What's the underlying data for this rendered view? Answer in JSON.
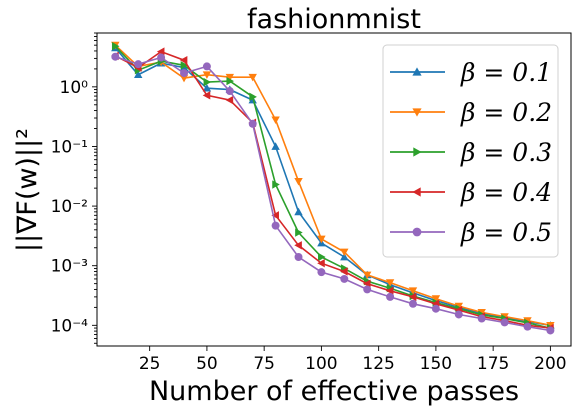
{
  "chart_data": {
    "type": "line",
    "title": "fashionmnist",
    "xlabel": "Number of effective passes",
    "ylabel": "||∇F(w)||²",
    "xlim": [
      2,
      209
    ],
    "ylim": [
      4.5e-05,
      8
    ],
    "yscale": "log",
    "grid": false,
    "legend_position": "top-right",
    "x_ticks": [
      25,
      50,
      75,
      100,
      125,
      150,
      175,
      200
    ],
    "y_ticks": [
      {
        "value": 1,
        "label": "10⁰"
      },
      {
        "value": 0.1,
        "label": "10⁻¹"
      },
      {
        "value": 0.01,
        "label": "10⁻²"
      },
      {
        "value": 0.001,
        "label": "10⁻³"
      },
      {
        "value": 0.0001,
        "label": "10⁻⁴"
      }
    ],
    "x": [
      10,
      20,
      30,
      40,
      50,
      60,
      70,
      80,
      90,
      100,
      110,
      120,
      130,
      140,
      150,
      160,
      170,
      180,
      190,
      200
    ],
    "series": [
      {
        "name": "β = 0.1",
        "color": "#1f77b4",
        "marker": "triangle-up",
        "values": [
          4.5,
          1.6,
          2.5,
          2.1,
          0.95,
          0.9,
          0.6,
          0.1,
          0.008,
          0.0024,
          0.0014,
          0.0007,
          0.00048,
          0.00035,
          0.00026,
          0.0002,
          0.00016,
          0.000135,
          0.000115,
          0.0001
        ]
      },
      {
        "name": "β = 0.2",
        "color": "#ff7f0e",
        "marker": "triangle-down",
        "values": [
          5.0,
          2.2,
          2.6,
          1.4,
          1.6,
          1.45,
          1.45,
          0.28,
          0.026,
          0.0028,
          0.0017,
          0.0007,
          0.00052,
          0.00038,
          0.00028,
          0.00021,
          0.000165,
          0.00014,
          0.00012,
          0.0001
        ]
      },
      {
        "name": "β = 0.3",
        "color": "#2ca02c",
        "marker": "triangle-right",
        "values": [
          4.8,
          1.9,
          2.7,
          2.3,
          1.2,
          1.25,
          0.68,
          0.023,
          0.0036,
          0.0014,
          0.0009,
          0.00055,
          0.00042,
          0.00031,
          0.00024,
          0.00019,
          0.00015,
          0.00013,
          0.00011,
          9e-05
        ]
      },
      {
        "name": "β = 0.4",
        "color": "#d62728",
        "marker": "triangle-left",
        "values": [
          3.3,
          2.1,
          3.9,
          2.8,
          0.72,
          0.6,
          0.25,
          0.007,
          0.0022,
          0.0011,
          0.0008,
          0.0005,
          0.00038,
          0.0003,
          0.00023,
          0.00018,
          0.00014,
          0.00012,
          0.0001,
          9e-05
        ]
      },
      {
        "name": "β = 0.5",
        "color": "#9467bd",
        "marker": "circle",
        "values": [
          3.2,
          2.4,
          3.1,
          1.7,
          2.2,
          0.85,
          0.24,
          0.0047,
          0.0014,
          0.00078,
          0.0006,
          0.0004,
          0.0003,
          0.00023,
          0.00019,
          0.000152,
          0.00013,
          0.000112,
          9.5e-05,
          8.2e-05
        ]
      }
    ]
  }
}
